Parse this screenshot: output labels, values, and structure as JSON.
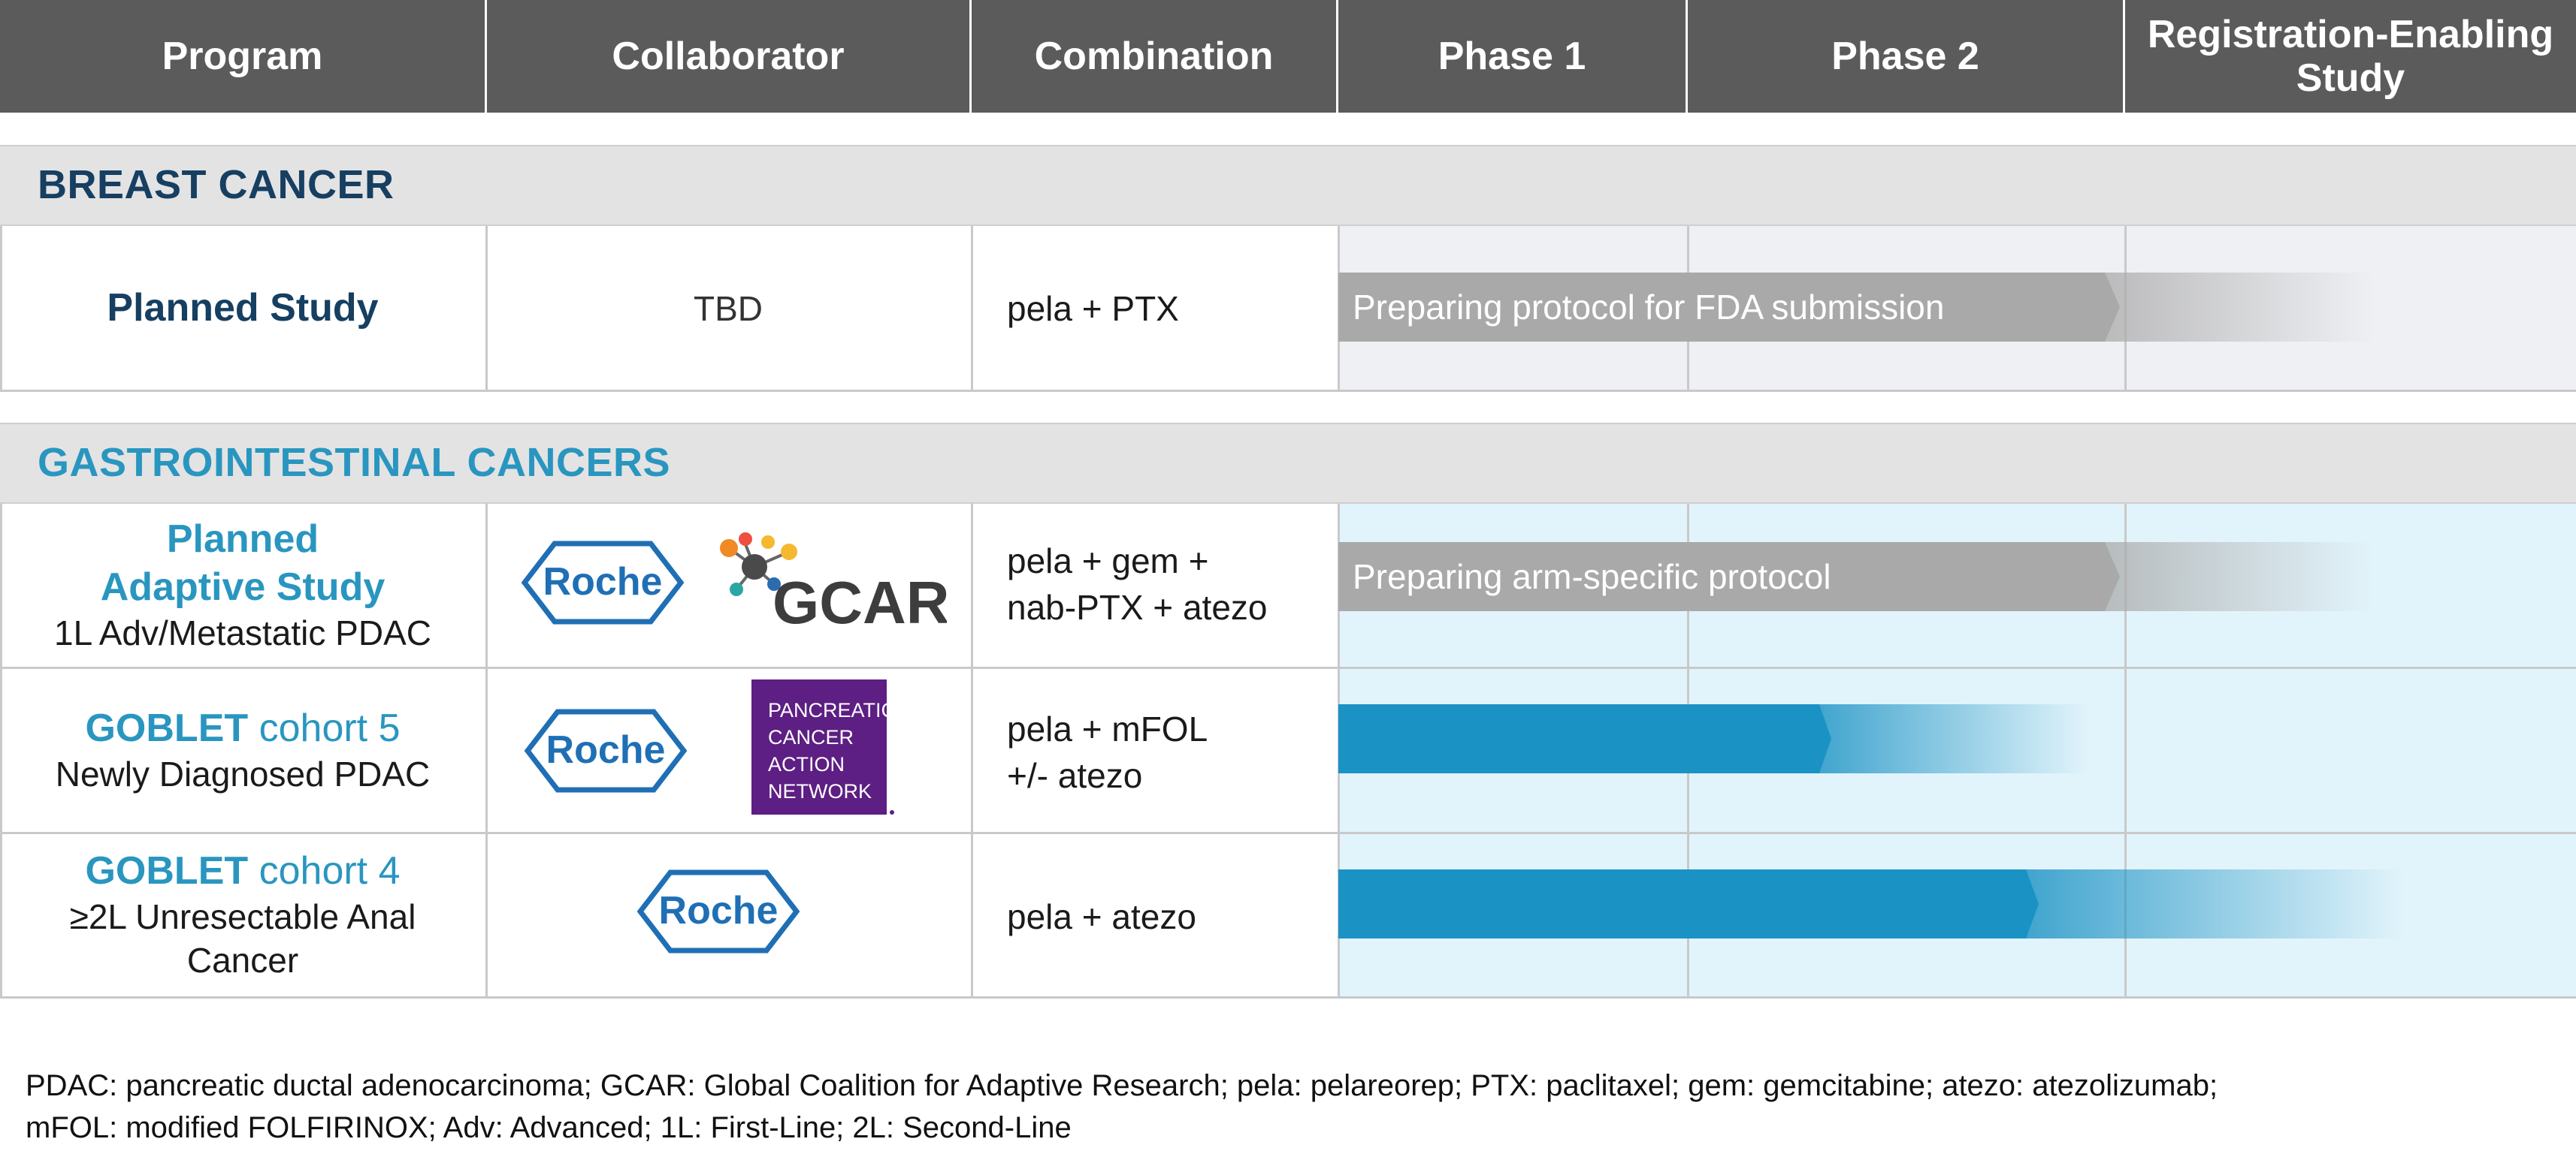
{
  "header": {
    "program": "Program",
    "collaborator": "Collaborator",
    "combination": "Combination",
    "phase1": "Phase 1",
    "phase2": "Phase 2",
    "registration_line1": "Registration-Enabling",
    "registration_line2": "Study"
  },
  "sections": {
    "breast": "BREAST CANCER",
    "gi": "GASTROINTESTINAL CANCERS"
  },
  "rows": [
    {
      "program_line1": "Planned Study",
      "collaborator_text": "TBD",
      "combination_line1": "pela + PTX",
      "status": "Preparing protocol for FDA submission",
      "progress_pct_of_phase_area": 29
    },
    {
      "program_line1": "Planned",
      "program_line2": "Adaptive Study",
      "program_line3": "1L Adv/Metastatic PDAC",
      "collaborator_logos": [
        "Roche",
        "GCAR"
      ],
      "combination_line1": "pela + gem +",
      "combination_line2": "nab-PTX + atezo",
      "status": "Preparing arm-specific protocol",
      "progress_pct_of_phase_area": 29
    },
    {
      "program_bold": "GOBLET",
      "program_regular": " cohort 5",
      "program_line2": "Newly Diagnosed PDAC",
      "collaborator_logos": [
        "Roche",
        "PANCREATIC CANCER ACTION NETWORK"
      ],
      "pancan_lines": [
        "PANCREATIC",
        "CANCER",
        "ACTION",
        "NETWORK"
      ],
      "combination_line1": "pela + mFOL",
      "combination_line2": "+/- atezo",
      "progress_pct_of_phase_area": 18
    },
    {
      "program_bold": "GOBLET",
      "program_regular": " cohort 4",
      "program_line2": "≥2L Unresectable Anal",
      "program_line3": "Cancer",
      "collaborator_logos": [
        "Roche"
      ],
      "combination_line1": "pela + atezo",
      "progress_pct_of_phase_area": 26
    }
  ],
  "logos": {
    "roche": "Roche",
    "gcar": "GCAR"
  },
  "colors": {
    "header_bg": "#5b5b5b",
    "navy": "#163f61",
    "accent_blue": "#2996c0",
    "bar_blue": "#1b92c4",
    "bar_gray": "#a9a9a9",
    "gi_phase_bg": "#e2f4fb",
    "breast_phase_bg": "#eff0f4",
    "pancan_purple": "#5d1f83"
  },
  "footer": {
    "line1": "PDAC: pancreatic ductal adenocarcinoma; GCAR: Global Coalition for Adaptive Research; pela: pelareorep; PTX: paclitaxel; gem: gemcitabine; atezo: atezolizumab;",
    "line2": "mFOL: modified FOLFIRINOX; Adv: Advanced; 1L: First-Line; 2L: Second-Line"
  }
}
